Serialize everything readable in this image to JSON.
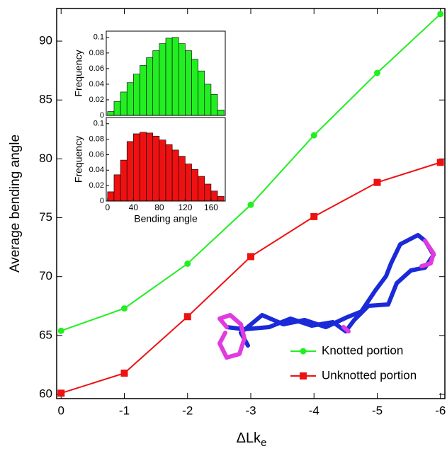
{
  "chart_data": [
    {
      "type": "line",
      "x_label": "ΔLk",
      "x_label_subscript": "e",
      "y_label": "Average bending angle",
      "x": [
        0,
        -1,
        -2,
        -3,
        -4,
        -5,
        -6
      ],
      "series": [
        {
          "name": "Knotted portion",
          "color": "#22ee22",
          "marker": "circle",
          "values": [
            65.4,
            67.3,
            71.1,
            76.1,
            82.0,
            87.3,
            92.3
          ]
        },
        {
          "name": "Unknotted portion",
          "color": "#ee1111",
          "marker": "square",
          "values": [
            60.1,
            61.8,
            66.6,
            71.7,
            75.1,
            78.0,
            79.7
          ]
        }
      ],
      "xlim": [
        0.07,
        -6.07
      ],
      "xticks": [
        0,
        -1,
        -2,
        -3,
        -4,
        -5,
        -6
      ],
      "ylim": [
        59.64,
        92.77
      ],
      "yticks": [
        60,
        65,
        70,
        75,
        80,
        85,
        90
      ],
      "legend": "lower right"
    },
    {
      "type": "histogram",
      "y_label": "Frequency",
      "color": "#22ee22",
      "bins": [
        0,
        10,
        20,
        30,
        40,
        50,
        60,
        70,
        80,
        90,
        100,
        110,
        120,
        130,
        140,
        150,
        160,
        170,
        180
      ],
      "values": [
        0.005,
        0.018,
        0.03,
        0.042,
        0.053,
        0.064,
        0.074,
        0.083,
        0.092,
        0.099,
        0.1,
        0.092,
        0.083,
        0.072,
        0.057,
        0.04,
        0.027,
        0.007
      ],
      "xlim": [
        -2,
        182
      ],
      "ylim": [
        0,
        0.108
      ],
      "yticks": [
        0,
        0.02,
        0.04,
        0.06,
        0.08,
        0.1
      ]
    },
    {
      "type": "histogram",
      "y_label": "Frequency",
      "x_label": "Bending angle",
      "color": "#ee1111",
      "bins": [
        0,
        10,
        20,
        30,
        40,
        50,
        60,
        70,
        80,
        90,
        100,
        110,
        120,
        130,
        140,
        150,
        160,
        170,
        180
      ],
      "values": [
        0.012,
        0.034,
        0.053,
        0.077,
        0.087,
        0.089,
        0.088,
        0.084,
        0.079,
        0.073,
        0.066,
        0.058,
        0.048,
        0.041,
        0.032,
        0.022,
        0.013,
        0.006
      ],
      "xlim": [
        -2,
        182
      ],
      "xticks": [
        0,
        40,
        80,
        120,
        160
      ],
      "ylim": [
        0,
        0.108
      ],
      "yticks": [
        0,
        0.02,
        0.04,
        0.06,
        0.08,
        0.1
      ]
    }
  ]
}
